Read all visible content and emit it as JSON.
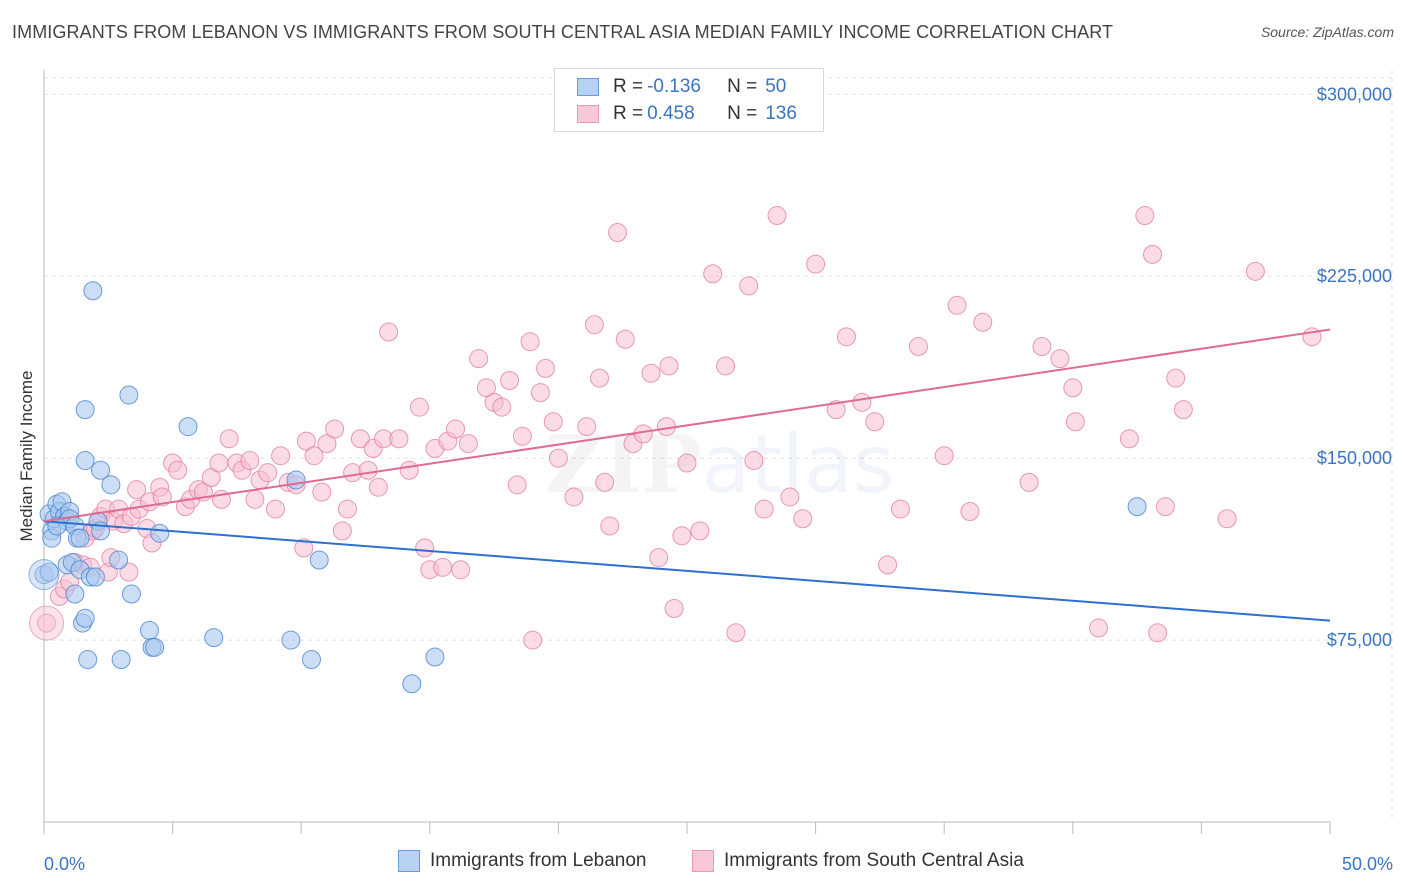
{
  "title": "IMMIGRANTS FROM LEBANON VS IMMIGRANTS FROM SOUTH CENTRAL ASIA MEDIAN FAMILY INCOME CORRELATION CHART",
  "source": "Source: ZipAtlas.com",
  "watermark": "ZIPatlas",
  "legend": {
    "rows": [
      {
        "r_label": "R = ",
        "r_value": "-0.136",
        "n_label": "N = ",
        "n_value": "50"
      },
      {
        "r_label": "R = ",
        "r_value": "0.458",
        "n_label": "N = ",
        "n_value": "136"
      }
    ]
  },
  "colors": {
    "lebanon_fill": "#a8c8f0",
    "lebanon_stroke": "#4a86d0",
    "lebanon_line": "#2f6fd0",
    "sca_fill": "#f7c0d2",
    "sca_stroke": "#e27a9c",
    "sca_line": "#e06a93",
    "axis_text": "#3a74c4"
  },
  "chart_data": {
    "type": "scatter",
    "title": "IMMIGRANTS FROM LEBANON VS IMMIGRANTS FROM SOUTH CENTRAL ASIA MEDIAN FAMILY INCOME CORRELATION CHART",
    "xlabel": "",
    "ylabel": "Median Family Income",
    "xlim": [
      0,
      50
    ],
    "ylim": [
      0,
      310000
    ],
    "x_tick_labels": [
      "0.0%",
      "50.0%"
    ],
    "y_ticks": [
      75000,
      150000,
      225000,
      300000
    ],
    "y_tick_labels": [
      "$75,000",
      "$150,000",
      "$225,000",
      "$300,000"
    ],
    "grid": true,
    "legend_position": "top-center",
    "series": [
      {
        "name": "Immigrants from Lebanon",
        "r": -0.136,
        "n": 50,
        "trend": {
          "x": [
            0,
            50
          ],
          "y": [
            124000,
            83000
          ]
        },
        "points": [
          [
            0.2,
            127000
          ],
          [
            0.3,
            120000
          ],
          [
            0.3,
            117000
          ],
          [
            0.4,
            125000
          ],
          [
            0.5,
            131000
          ],
          [
            0.6,
            128000
          ],
          [
            0.7,
            132000
          ],
          [
            0.8,
            126000
          ],
          [
            0.9,
            124000
          ],
          [
            1.0,
            128000
          ],
          [
            0.9,
            106000
          ],
          [
            1.1,
            107000
          ],
          [
            1.0,
            125000
          ],
          [
            1.2,
            122000
          ],
          [
            1.2,
            94000
          ],
          [
            1.3,
            117000
          ],
          [
            1.4,
            104000
          ],
          [
            1.5,
            82000
          ],
          [
            1.6,
            84000
          ],
          [
            1.7,
            67000
          ],
          [
            1.6,
            149000
          ],
          [
            1.6,
            170000
          ],
          [
            1.8,
            101000
          ],
          [
            1.9,
            219000
          ],
          [
            2.0,
            101000
          ],
          [
            2.1,
            124000
          ],
          [
            2.2,
            120000
          ],
          [
            2.2,
            145000
          ],
          [
            2.6,
            139000
          ],
          [
            2.9,
            108000
          ],
          [
            3.0,
            67000
          ],
          [
            3.3,
            176000
          ],
          [
            3.4,
            94000
          ],
          [
            4.1,
            79000
          ],
          [
            4.2,
            72000
          ],
          [
            4.3,
            72000
          ],
          [
            4.5,
            119000
          ],
          [
            5.6,
            163000
          ],
          [
            6.6,
            76000
          ],
          [
            9.6,
            75000
          ],
          [
            9.8,
            141000
          ],
          [
            10.4,
            67000
          ],
          [
            10.7,
            108000
          ],
          [
            14.3,
            57000
          ],
          [
            15.2,
            68000
          ],
          [
            42.5,
            130000
          ],
          [
            0.0,
            102000
          ],
          [
            0.2,
            103000
          ],
          [
            1.4,
            117000
          ],
          [
            0.5,
            122000
          ]
        ]
      },
      {
        "name": "Immigrants from South Central Asia",
        "r": 0.458,
        "n": 136,
        "trend": {
          "x": [
            0,
            50
          ],
          "y": [
            124000,
            203000
          ]
        },
        "points": [
          [
            0.1,
            82000
          ],
          [
            0.6,
            93000
          ],
          [
            0.8,
            96000
          ],
          [
            1.0,
            99000
          ],
          [
            1.2,
            107000
          ],
          [
            1.5,
            106000
          ],
          [
            1.6,
            117000
          ],
          [
            1.8,
            105000
          ],
          [
            1.9,
            120000
          ],
          [
            2.0,
            121000
          ],
          [
            2.2,
            126000
          ],
          [
            2.4,
            129000
          ],
          [
            2.5,
            103000
          ],
          [
            2.6,
            109000
          ],
          [
            2.7,
            124000
          ],
          [
            2.9,
            129000
          ],
          [
            3.1,
            123000
          ],
          [
            3.3,
            103000
          ],
          [
            3.4,
            126000
          ],
          [
            3.6,
            137000
          ],
          [
            3.7,
            129000
          ],
          [
            4.0,
            121000
          ],
          [
            4.1,
            132000
          ],
          [
            4.2,
            115000
          ],
          [
            4.5,
            138000
          ],
          [
            4.6,
            134000
          ],
          [
            5.0,
            148000
          ],
          [
            5.2,
            145000
          ],
          [
            5.5,
            130000
          ],
          [
            5.7,
            133000
          ],
          [
            6.0,
            137000
          ],
          [
            6.2,
            136000
          ],
          [
            6.5,
            142000
          ],
          [
            6.8,
            148000
          ],
          [
            6.9,
            133000
          ],
          [
            7.2,
            158000
          ],
          [
            7.5,
            148000
          ],
          [
            7.7,
            145000
          ],
          [
            8.0,
            149000
          ],
          [
            8.2,
            133000
          ],
          [
            8.4,
            141000
          ],
          [
            8.7,
            144000
          ],
          [
            9.0,
            129000
          ],
          [
            9.2,
            151000
          ],
          [
            9.5,
            140000
          ],
          [
            9.8,
            139000
          ],
          [
            10.1,
            113000
          ],
          [
            10.2,
            157000
          ],
          [
            10.5,
            151000
          ],
          [
            10.8,
            136000
          ],
          [
            11.0,
            156000
          ],
          [
            11.3,
            162000
          ],
          [
            11.6,
            120000
          ],
          [
            11.8,
            129000
          ],
          [
            12.0,
            144000
          ],
          [
            12.3,
            158000
          ],
          [
            12.6,
            145000
          ],
          [
            12.8,
            154000
          ],
          [
            13.0,
            138000
          ],
          [
            13.2,
            158000
          ],
          [
            13.4,
            202000
          ],
          [
            13.8,
            158000
          ],
          [
            14.2,
            145000
          ],
          [
            14.6,
            171000
          ],
          [
            14.8,
            113000
          ],
          [
            15.0,
            104000
          ],
          [
            15.2,
            154000
          ],
          [
            15.5,
            105000
          ],
          [
            15.7,
            157000
          ],
          [
            16.0,
            162000
          ],
          [
            16.2,
            104000
          ],
          [
            16.5,
            156000
          ],
          [
            16.9,
            191000
          ],
          [
            17.2,
            179000
          ],
          [
            17.5,
            173000
          ],
          [
            17.8,
            171000
          ],
          [
            18.1,
            182000
          ],
          [
            18.4,
            139000
          ],
          [
            18.6,
            159000
          ],
          [
            18.9,
            198000
          ],
          [
            19.0,
            75000
          ],
          [
            19.3,
            177000
          ],
          [
            19.5,
            187000
          ],
          [
            19.8,
            165000
          ],
          [
            20.0,
            150000
          ],
          [
            20.6,
            134000
          ],
          [
            21.1,
            163000
          ],
          [
            21.4,
            205000
          ],
          [
            21.6,
            183000
          ],
          [
            21.8,
            140000
          ],
          [
            22.0,
            122000
          ],
          [
            22.3,
            243000
          ],
          [
            22.6,
            199000
          ],
          [
            22.9,
            156000
          ],
          [
            23.3,
            160000
          ],
          [
            23.6,
            185000
          ],
          [
            23.9,
            109000
          ],
          [
            24.2,
            163000
          ],
          [
            24.3,
            188000
          ],
          [
            24.5,
            88000
          ],
          [
            24.8,
            118000
          ],
          [
            25.0,
            148000
          ],
          [
            25.5,
            120000
          ],
          [
            26.0,
            226000
          ],
          [
            26.5,
            188000
          ],
          [
            26.9,
            78000
          ],
          [
            27.4,
            221000
          ],
          [
            27.6,
            149000
          ],
          [
            28.0,
            129000
          ],
          [
            28.5,
            250000
          ],
          [
            29.0,
            134000
          ],
          [
            29.5,
            125000
          ],
          [
            30.0,
            230000
          ],
          [
            30.8,
            170000
          ],
          [
            31.2,
            200000
          ],
          [
            31.8,
            173000
          ],
          [
            32.3,
            165000
          ],
          [
            32.8,
            106000
          ],
          [
            33.3,
            129000
          ],
          [
            34.0,
            196000
          ],
          [
            35.0,
            151000
          ],
          [
            35.5,
            213000
          ],
          [
            36.0,
            128000
          ],
          [
            36.5,
            206000
          ],
          [
            38.3,
            140000
          ],
          [
            38.8,
            196000
          ],
          [
            39.5,
            191000
          ],
          [
            40.0,
            179000
          ],
          [
            41.0,
            80000
          ],
          [
            42.2,
            158000
          ],
          [
            42.8,
            250000
          ],
          [
            43.1,
            234000
          ],
          [
            43.3,
            78000
          ],
          [
            44.0,
            183000
          ],
          [
            44.3,
            170000
          ],
          [
            46.0,
            125000
          ],
          [
            47.1,
            227000
          ],
          [
            49.3,
            200000
          ],
          [
            40.1,
            165000
          ],
          [
            43.6,
            130000
          ]
        ]
      }
    ]
  }
}
